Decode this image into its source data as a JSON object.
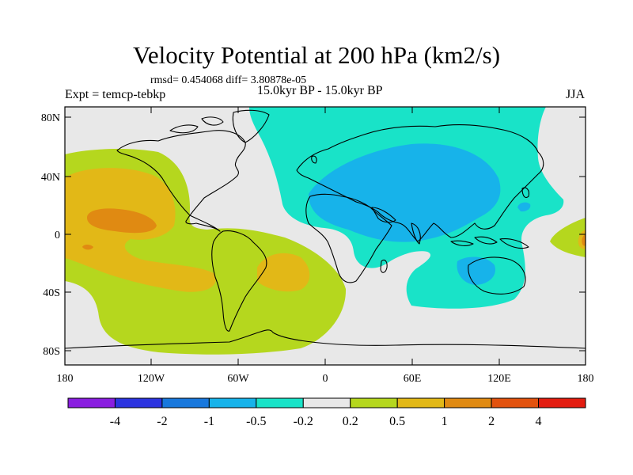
{
  "title": "Velocity Potential at 200 hPa (km2/s)",
  "stats": "rmsd= 0.454068 diff= 3.80878e-05",
  "experiment": "Expt = temcp-tebkp",
  "period": "15.0kyr BP - 15.0kyr BP",
  "season": "JJA",
  "lat_labels": [
    "80N",
    "40N",
    "0",
    "40S",
    "80S"
  ],
  "lon_labels": [
    "180",
    "120W",
    "60W",
    "0",
    "60E",
    "120E",
    "180"
  ],
  "colorbar": {
    "colors": [
      "#8a1ee0",
      "#2c34e0",
      "#1878dd",
      "#17b3ea",
      "#19e3c8",
      "#e8e8e8",
      "#b5d71e",
      "#e2b817",
      "#e08a12",
      "#e2520e",
      "#e31c10"
    ],
    "labels": [
      "-4",
      "-2",
      "-1",
      "-0.5",
      "-0.2",
      "0.2",
      "0.5",
      "1",
      "2",
      "4"
    ]
  }
}
